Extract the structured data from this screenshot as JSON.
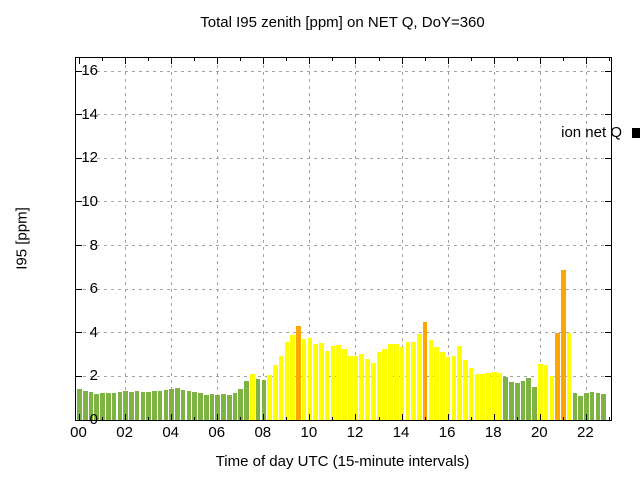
{
  "title": "Total I95 zenith [ppm] on NET Q, DoY=360",
  "legend": {
    "label": "ion net Q",
    "swatch_color": "#000000"
  },
  "colors": {
    "low_green": "#7CB342",
    "mid_yellow": "#FFFF00",
    "high_orange": "#FFA500",
    "grid": "#a3a3a3",
    "border": "#000000",
    "background": "#ffffff",
    "threshold_yellow": 2,
    "threshold_orange": 4
  },
  "chart_data": {
    "type": "bar",
    "title": "Total I95 zenith [ppm] on NET Q, DoY=360",
    "xlabel": "Time of day UTC (15-minute intervals)",
    "ylabel": "I95 [ppm]",
    "legend_entries": [
      "ion net Q"
    ],
    "legend_position": "top-right-inside",
    "grid": true,
    "x_start": "00:00",
    "x_interval_minutes": 15,
    "x_tick_labels": [
      "00",
      "02",
      "04",
      "06",
      "08",
      "10",
      "12",
      "14",
      "16",
      "18",
      "20",
      "22"
    ],
    "y_tick_labels": [
      0,
      2,
      4,
      6,
      8,
      10,
      12,
      14,
      16
    ],
    "ylim": [
      0,
      16.6
    ],
    "color_rule": "green if value < 2 ppm, yellow if 2-4 ppm, orange if >= 4 ppm",
    "values": [
      1.4,
      1.35,
      1.3,
      1.2,
      1.25,
      1.25,
      1.25,
      1.3,
      1.35,
      1.3,
      1.35,
      1.3,
      1.3,
      1.33,
      1.33,
      1.36,
      1.42,
      1.48,
      1.36,
      1.33,
      1.3,
      1.24,
      1.15,
      1.19,
      1.15,
      1.19,
      1.15,
      1.24,
      1.44,
      1.8,
      2.11,
      1.88,
      1.85,
      2.06,
      2.5,
      2.95,
      3.56,
      3.88,
      4.33,
      3.73,
      3.75,
      3.5,
      3.52,
      3.17,
      3.4,
      3.45,
      3.25,
      2.92,
      2.95,
      3.02,
      2.8,
      2.62,
      3.1,
      3.25,
      3.48,
      3.5,
      3.37,
      3.56,
      3.6,
      3.94,
      4.5,
      3.66,
      3.33,
      3.1,
      2.9,
      2.95,
      3.4,
      2.73,
      2.38,
      2.1,
      2.12,
      2.17,
      2.21,
      2.14,
      1.97,
      1.74,
      1.68,
      1.8,
      1.92,
      1.5,
      2.55,
      2.5,
      2.03,
      4.0,
      6.9,
      3.98,
      1.25,
      1.1,
      1.24,
      1.3,
      1.24,
      1.19
    ]
  }
}
